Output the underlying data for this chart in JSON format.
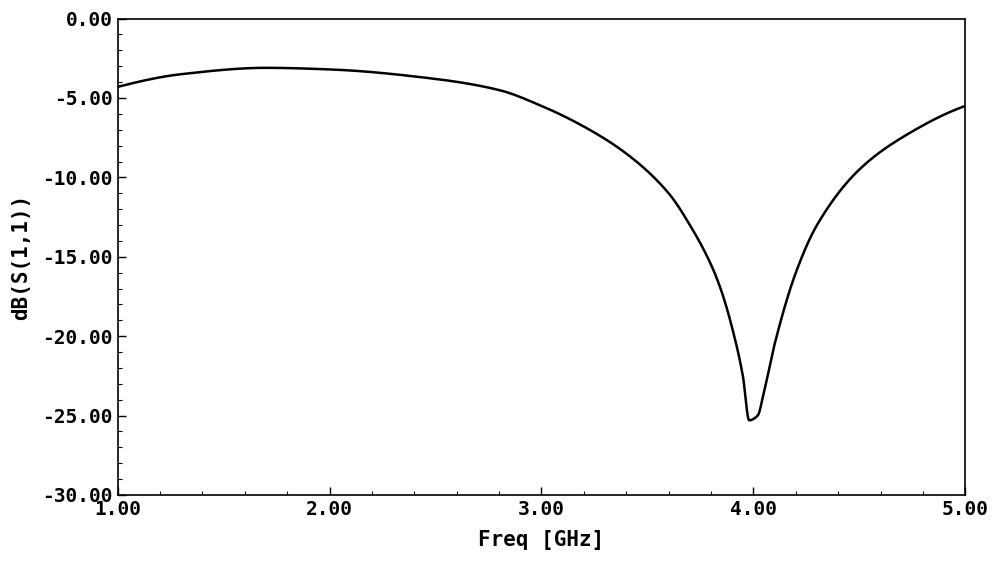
{
  "title": "",
  "xlabel": "Freq [GHz]",
  "ylabel": "dB(S(1,1))",
  "xlim": [
    1.0,
    5.0
  ],
  "ylim": [
    -30.0,
    0.0
  ],
  "xticks": [
    1.0,
    2.0,
    3.0,
    4.0,
    5.0
  ],
  "yticks": [
    0.0,
    -5.0,
    -10.0,
    -15.0,
    -20.0,
    -25.0,
    -30.0
  ],
  "xtick_labels": [
    "1.00",
    "2.00",
    "3.00",
    "4.00",
    "5.00"
  ],
  "ytick_labels": [
    "0.00",
    "-5.00",
    "-10.00",
    "-15.00",
    "-20.00",
    "-25.00",
    "-30.00"
  ],
  "line_color": "#000000",
  "line_width": 1.8,
  "background_color": "#ffffff",
  "font_size_ticks": 14,
  "font_size_labels": 15,
  "curve_points_freq": [
    1.0,
    1.3,
    1.7,
    2.0,
    2.5,
    2.8,
    3.0,
    3.2,
    3.4,
    3.6,
    3.7,
    3.8,
    3.85,
    3.9,
    3.95,
    3.98,
    4.02,
    4.05,
    4.1,
    4.2,
    4.3,
    4.5,
    4.7,
    5.0
  ],
  "curve_points_s11": [
    -4.3,
    -3.5,
    -3.1,
    -3.2,
    -3.8,
    -4.5,
    -5.5,
    -6.8,
    -8.5,
    -11.0,
    -13.0,
    -15.5,
    -17.2,
    -19.5,
    -22.5,
    -25.3,
    -25.0,
    -23.5,
    -20.5,
    -16.0,
    -13.0,
    -9.5,
    -7.5,
    -5.5
  ]
}
